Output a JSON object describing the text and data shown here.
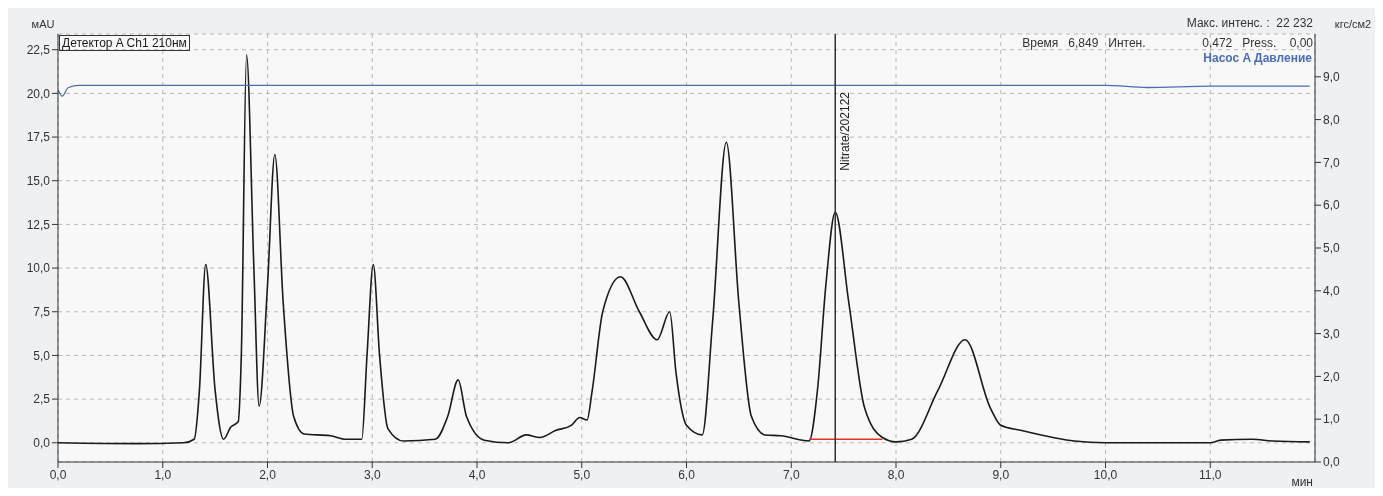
{
  "chart_data": {
    "type": "line",
    "xlabel": "мин",
    "ylabel": "мAU",
    "y2label": "кгс/см2",
    "xlim": [
      0,
      12.0
    ],
    "ylim": [
      -1.1,
      23.4
    ],
    "y2lim": [
      0,
      10.0
    ],
    "xticks": [
      {
        "value": 0,
        "label": "0,0"
      },
      {
        "value": 1,
        "label": "1,0"
      },
      {
        "value": 2,
        "label": "2,0"
      },
      {
        "value": 3,
        "label": "3,0"
      },
      {
        "value": 4,
        "label": "4,0"
      },
      {
        "value": 5,
        "label": "5,0"
      },
      {
        "value": 6,
        "label": "6,0"
      },
      {
        "value": 7,
        "label": "7,0"
      },
      {
        "value": 8,
        "label": "8,0"
      },
      {
        "value": 9,
        "label": "9,0"
      },
      {
        "value": 10,
        "label": "10,0"
      },
      {
        "value": 11,
        "label": "11,0"
      }
    ],
    "yticks": [
      {
        "value": 0,
        "label": "0,0"
      },
      {
        "value": 2.5,
        "label": "2,5"
      },
      {
        "value": 5,
        "label": "5,0"
      },
      {
        "value": 7.5,
        "label": "7,5"
      },
      {
        "value": 10,
        "label": "10,0"
      },
      {
        "value": 12.5,
        "label": "12,5"
      },
      {
        "value": 15,
        "label": "15,0"
      },
      {
        "value": 17.5,
        "label": "17,5"
      },
      {
        "value": 20,
        "label": "20,0"
      },
      {
        "value": 22.5,
        "label": "22,5"
      }
    ],
    "y2ticks": [
      {
        "value": 0,
        "label": "0,0"
      },
      {
        "value": 1,
        "label": "1,0"
      },
      {
        "value": 2,
        "label": "2,0"
      },
      {
        "value": 3,
        "label": "3,0"
      },
      {
        "value": 4,
        "label": "4,0"
      },
      {
        "value": 5,
        "label": "5,0"
      },
      {
        "value": 6,
        "label": "6,0"
      },
      {
        "value": 7,
        "label": "7,0"
      },
      {
        "value": 8,
        "label": "8,0"
      },
      {
        "value": 9,
        "label": "9,0"
      }
    ],
    "series": [
      {
        "name": "Детектор A Ch1 210нм",
        "color": "#1a1a1a",
        "x": [
          0,
          0.75,
          1.2,
          1.3,
          1.35,
          1.41,
          1.5,
          1.58,
          1.65,
          1.72,
          1.75,
          1.8,
          1.87,
          1.92,
          2.0,
          2.07,
          2.15,
          2.25,
          2.35,
          2.6,
          2.75,
          2.9,
          2.95,
          3.01,
          3.07,
          3.15,
          3.3,
          3.6,
          3.72,
          3.82,
          3.9,
          4.07,
          4.3,
          4.47,
          4.6,
          4.75,
          4.9,
          4.98,
          5.05,
          5.1,
          5.2,
          5.37,
          5.55,
          5.72,
          5.84,
          5.9,
          6.0,
          6.15,
          6.25,
          6.38,
          6.5,
          6.62,
          6.75,
          6.9,
          7.17,
          7.25,
          7.33,
          7.42,
          7.55,
          7.7,
          7.87,
          8.0,
          8.15,
          8.4,
          8.66,
          8.9,
          9.0,
          9.2,
          9.5,
          9.7,
          10.0,
          11.0,
          11.1,
          11.4,
          11.6,
          11.95
        ],
        "values": [
          0,
          -0.05,
          0,
          0.2,
          3,
          10.2,
          3,
          0.2,
          0.9,
          1.2,
          5,
          22.2,
          10,
          2.1,
          9,
          16.5,
          8,
          1.5,
          0.5,
          0.4,
          0.2,
          0.2,
          5,
          10.2,
          5,
          0.8,
          0.1,
          0.2,
          1.5,
          3.6,
          1.5,
          0.15,
          0,
          0.45,
          0.3,
          0.7,
          1,
          1.45,
          1.3,
          3,
          7.5,
          9.5,
          7.5,
          5.9,
          7.5,
          4,
          1,
          0.45,
          7,
          17.2,
          8,
          1.5,
          0.45,
          0.4,
          0.1,
          3,
          9,
          13.2,
          8,
          2,
          0.3,
          0.05,
          0.2,
          3,
          5.9,
          2,
          1,
          0.7,
          0.3,
          0.1,
          0,
          0,
          0.15,
          0.2,
          0.1,
          0.05
        ]
      },
      {
        "name": "Насос A Давление",
        "color": "#4a6db8",
        "axis": "y2",
        "x": [
          0,
          0.04,
          0.1,
          0.2,
          2,
          4,
          6,
          8,
          10,
          10.4,
          11,
          11.95
        ],
        "values": [
          8.7,
          8.55,
          8.75,
          8.8,
          8.8,
          8.8,
          8.8,
          8.8,
          8.8,
          8.75,
          8.78,
          8.78
        ]
      },
      {
        "color": "#e8322d",
        "x": [
          7.17,
          7.87
        ],
        "values": [
          0.2,
          0.2
        ]
      }
    ],
    "ref_lines": [
      {
        "axis": "x",
        "value": 7.42,
        "label": "Nitrate/202122",
        "color": "#333333"
      }
    ],
    "annotations": [
      "Время   6,849   Интен.                 0,472   Press.    0,00",
      "Макс. интенс. :  22 232"
    ],
    "grid": true,
    "legend": "top",
    "marker": "none",
    "line_style": "solid"
  }
}
